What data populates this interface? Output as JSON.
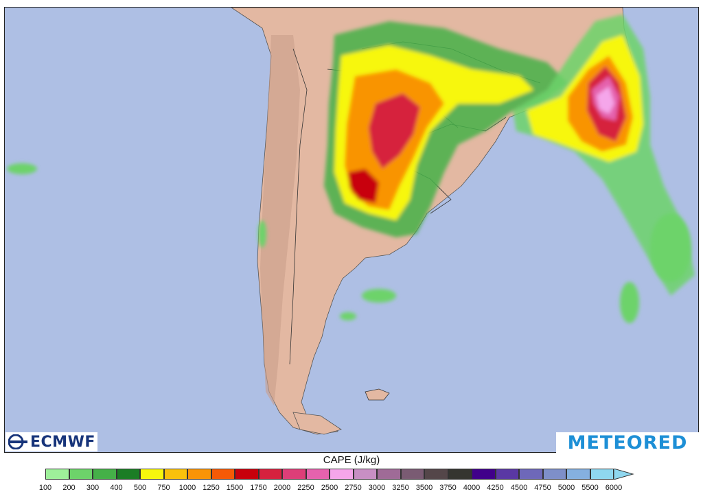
{
  "map": {
    "ocean_color": "#aebfe4",
    "land_color": "#e3b8a2",
    "region": "southern South America",
    "field": "CAPE"
  },
  "logos": {
    "left": "ECMWF",
    "right": "METEORED"
  },
  "legend": {
    "title": "CAPE (J/kg)",
    "ticks": [
      "100",
      "200",
      "300",
      "400",
      "500",
      "750",
      "1000",
      "1250",
      "1500",
      "1750",
      "2000",
      "2250",
      "2500",
      "2750",
      "3000",
      "3250",
      "3500",
      "3750",
      "4000",
      "4250",
      "4500",
      "4750",
      "5000",
      "5500",
      "6000"
    ],
    "colors": [
      "#9ef09a",
      "#6dd36a",
      "#45b048",
      "#1b7d25",
      "#f7f70d",
      "#f9c10c",
      "#f99406",
      "#f55a06",
      "#c8000c",
      "#d6223e",
      "#dd3e78",
      "#e562ad",
      "#f5a6ea",
      "#c88fc4",
      "#9f6b97",
      "#7a5b73",
      "#544649",
      "#353530",
      "#40008a",
      "#5a38a4",
      "#6e68b9",
      "#7e8fc9",
      "#85b0e0",
      "#8fd7ef"
    ]
  }
}
